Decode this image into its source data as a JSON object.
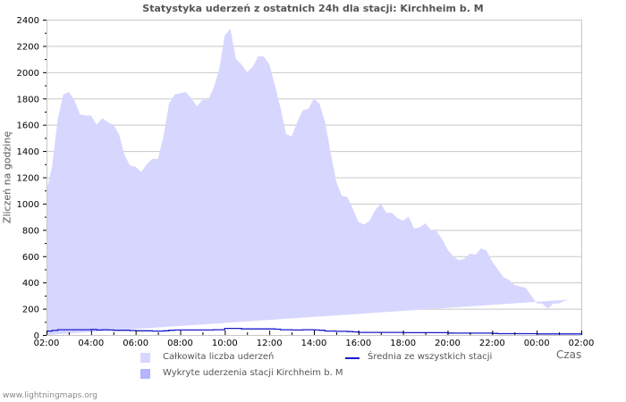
{
  "title": "Statystyka uderzeń z ostatnich 24h dla stacji: Kirchheim b. M",
  "ylabel": "Zliczeń na godzinę",
  "xlabel": "Czas",
  "footer": "www.lightningmaps.org",
  "legend": [
    {
      "label": "Całkowita liczba uderzeń",
      "color": "#d6d6ff",
      "kind": "area"
    },
    {
      "label": "Wykryte uderzenia stacji Kirchheim b. M",
      "color": "#b4b4ff",
      "kind": "area"
    },
    {
      "label": "Średnia ze wszystkich stacji",
      "color": "#0000cc",
      "kind": "line"
    }
  ],
  "colors": {
    "total_fill": "#d6d6ff",
    "avg_line": "#1a1acc",
    "grid": "#c8c8c8"
  },
  "chart_data": {
    "type": "area",
    "title": "Statystyka uderzeń z ostatnich 24h dla stacji: Kirchheim b. M",
    "xlabel": "Czas",
    "ylabel": "Zliczeń na godzinę",
    "ylim": [
      0,
      2400
    ],
    "yticks": [
      0,
      200,
      400,
      600,
      800,
      1000,
      1200,
      1400,
      1600,
      1800,
      2000,
      2200,
      2400
    ],
    "xticks": [
      "02:00",
      "04:00",
      "06:00",
      "08:00",
      "10:00",
      "12:00",
      "14:00",
      "16:00",
      "18:00",
      "20:00",
      "22:00",
      "00:00",
      "02:00"
    ],
    "grid": true,
    "legend_position": "bottom",
    "x_hours": [
      0,
      0.25,
      0.5,
      0.75,
      1,
      1.25,
      1.5,
      1.75,
      2,
      2.25,
      2.5,
      2.75,
      3,
      3.25,
      3.5,
      3.75,
      4,
      4.25,
      4.5,
      4.75,
      5,
      5.25,
      5.5,
      5.75,
      6,
      6.25,
      6.5,
      6.75,
      7,
      7.25,
      7.5,
      7.75,
      8,
      8.25,
      8.5,
      8.75,
      9,
      9.25,
      9.5,
      9.75,
      10,
      10.25,
      10.5,
      10.75,
      11,
      11.25,
      11.5,
      11.75,
      12,
      12.25,
      12.5,
      12.75,
      13,
      13.25,
      13.5,
      13.75,
      14,
      14.25,
      14.5,
      14.75,
      15,
      15.25,
      15.5,
      15.75,
      16,
      16.25,
      16.5,
      16.75,
      17,
      17.25,
      17.5,
      17.75,
      18,
      18.25,
      18.5,
      18.75,
      19,
      19.25,
      19.5,
      19.75,
      20,
      20.25,
      20.5,
      20.75,
      21,
      21.25,
      21.5,
      21.75,
      22,
      22.25,
      22.5,
      22.75,
      23,
      23.25,
      23.5,
      23.75,
      24
    ],
    "series": [
      {
        "name": "Całkowita liczba uderzeń",
        "values": [
          1100,
          1280,
          1640,
          1830,
          1850,
          1790,
          1680,
          1670,
          1670,
          1600,
          1650,
          1620,
          1600,
          1530,
          1370,
          1290,
          1280,
          1240,
          1300,
          1340,
          1340,
          1510,
          1760,
          1830,
          1840,
          1850,
          1800,
          1740,
          1790,
          1790,
          1880,
          2020,
          2280,
          2330,
          2100,
          2060,
          2000,
          2040,
          2120,
          2120,
          2060,
          1900,
          1730,
          1530,
          1510,
          1620,
          1710,
          1720,
          1800,
          1760,
          1620,
          1390,
          1170,
          1060,
          1050,
          960,
          860,
          840,
          870,
          950,
          1000,
          930,
          930,
          890,
          870,
          900,
          810,
          820,
          850,
          800,
          790,
          730,
          650,
          600,
          570,
          580,
          620,
          610,
          660,
          640,
          560,
          500,
          440,
          420,
          380,
          370,
          360,
          300,
          240,
          240,
          200,
          240,
          240,
          260,
          270
        ],
        "color": "#d6d6ff"
      },
      {
        "name": "Średnia ze wszystkich stacji",
        "values": [
          30,
          35,
          40,
          40,
          40,
          40,
          40,
          40,
          42,
          38,
          40,
          38,
          36,
          36,
          36,
          34,
          32,
          32,
          32,
          30,
          30,
          32,
          36,
          38,
          38,
          38,
          38,
          38,
          38,
          38,
          40,
          40,
          50,
          50,
          50,
          46,
          46,
          46,
          46,
          46,
          46,
          44,
          40,
          40,
          38,
          38,
          40,
          40,
          38,
          36,
          30,
          30,
          28,
          28,
          26,
          24,
          20,
          20,
          20,
          20,
          20,
          20,
          20,
          20,
          18,
          18,
          18,
          18,
          18,
          18,
          18,
          18,
          15,
          14,
          14,
          14,
          14,
          14,
          14,
          14,
          12,
          10,
          10,
          10,
          10,
          10,
          10,
          10,
          8,
          8,
          8,
          8,
          8,
          8,
          8,
          8,
          8
        ],
        "color": "#1a1acc"
      }
    ]
  }
}
